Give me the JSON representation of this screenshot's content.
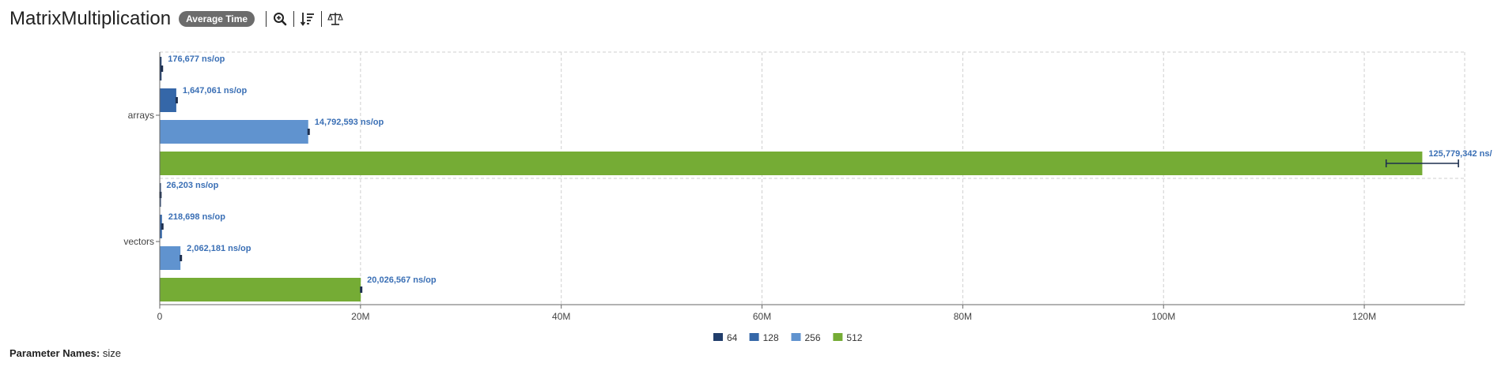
{
  "header": {
    "title": "MatrixMultiplication",
    "mode_badge": "Average Time"
  },
  "toolbar": {
    "icons": [
      "zoom-icon",
      "sort-icon",
      "compare-icon"
    ]
  },
  "footer": {
    "param_label": "Parameter Names:",
    "param_value": "size"
  },
  "chart_data": {
    "type": "bar",
    "orientation": "horizontal",
    "categories": [
      "arrays",
      "vectors"
    ],
    "series": [
      {
        "name": "64",
        "color": "#213e6b",
        "values": [
          176677,
          26203
        ],
        "errors": [
          0,
          0
        ],
        "labels": [
          "176,677 ns/op",
          "26,203 ns/op"
        ]
      },
      {
        "name": "128",
        "color": "#3567a8",
        "values": [
          1647061,
          218698
        ],
        "errors": [
          0,
          0
        ],
        "labels": [
          "1,647,061 ns/op",
          "218,698 ns/op"
        ]
      },
      {
        "name": "256",
        "color": "#6093cf",
        "values": [
          14792593,
          2062181
        ],
        "errors": [
          0,
          0
        ],
        "labels": [
          "14,792,593 ns/op",
          "2,062,181 ns/op"
        ]
      },
      {
        "name": "512",
        "color": "#75ac35",
        "values": [
          125779342,
          20026567
        ],
        "errors": [
          3600000,
          0
        ],
        "labels": [
          "125,779,342 ns/",
          "20,026,567 ns/op"
        ]
      }
    ],
    "xlim": [
      0,
      130000000
    ],
    "xticks": [
      0,
      20000000,
      40000000,
      60000000,
      80000000,
      100000000,
      120000000
    ],
    "xtick_labels": [
      "0",
      "20M",
      "40M",
      "60M",
      "80M",
      "100M",
      "120M"
    ],
    "grid": true,
    "legend_position": "bottom"
  }
}
